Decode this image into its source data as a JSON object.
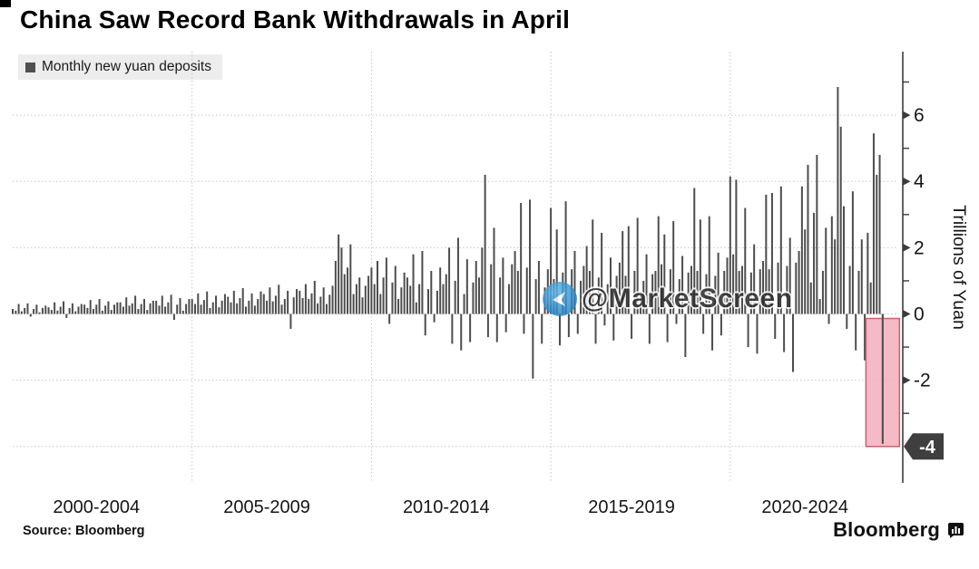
{
  "header": {
    "title": "China Saw Record Bank Withdrawals in April",
    "legend_label": "Monthly new yuan deposits"
  },
  "watermark": {
    "text": "@MarketScreen"
  },
  "footer": {
    "source": "Source: Bloomberg",
    "brand": "Bloomberg"
  },
  "chart_data": {
    "type": "bar",
    "title": "China Saw Record Bank Withdrawals in April",
    "series_name": "Monthly new yuan deposits",
    "ylabel": "Trillions of Yuan",
    "x_start": "2000-01",
    "x_end": "2024-04",
    "x_tick_labels": [
      "2000-2004",
      "2005-2009",
      "2010-2014",
      "2015-2019",
      "2020-2024"
    ],
    "y_axis": {
      "labeled_ticks": [
        6,
        4,
        2,
        0,
        -2
      ],
      "minor_ticks": [
        7,
        6,
        5,
        4,
        3,
        2,
        1,
        0,
        -1,
        -2,
        -3
      ],
      "ylim": [
        -5,
        7.9
      ],
      "gridlines": [
        6,
        4,
        2,
        0,
        -2,
        -4
      ],
      "badge": {
        "value": -4,
        "label": "-4"
      }
    },
    "values": [
      0.15,
      0.1,
      0.3,
      0.08,
      0.18,
      0.32,
      -0.08,
      0.15,
      0.28,
      0.05,
      0.18,
      0.25,
      0.2,
      0.12,
      0.35,
      0.1,
      0.22,
      0.38,
      -0.12,
      0.18,
      0.32,
      0.08,
      0.22,
      0.3,
      0.28,
      0.18,
      0.42,
      0.15,
      0.28,
      0.45,
      0.1,
      0.25,
      0.38,
      0.12,
      0.28,
      0.35,
      0.35,
      0.22,
      0.5,
      0.25,
      0.32,
      0.55,
      0.15,
      0.3,
      0.45,
      0.12,
      0.32,
      0.4,
      0.4,
      0.25,
      0.55,
      0.22,
      0.35,
      0.58,
      -0.18,
      0.28,
      0.48,
      0.1,
      0.3,
      0.45,
      0.45,
      0.3,
      0.62,
      0.28,
      0.42,
      0.68,
      0.18,
      0.35,
      0.55,
      0.2,
      0.4,
      0.6,
      0.52,
      0.35,
      0.7,
      0.32,
      0.48,
      0.78,
      0.22,
      0.4,
      0.62,
      0.25,
      0.45,
      0.68,
      0.6,
      0.4,
      0.8,
      0.38,
      0.55,
      0.88,
      0.28,
      0.45,
      0.7,
      -0.45,
      0.5,
      0.75,
      0.7,
      0.48,
      0.9,
      0.45,
      0.62,
      1.0,
      0.32,
      0.52,
      0.8,
      0.3,
      0.58,
      0.85,
      1.6,
      2.4,
      2.0,
      1.2,
      1.4,
      2.1,
      0.6,
      0.9,
      1.1,
      0.5,
      0.85,
      1.15,
      1.4,
      0.9,
      1.6,
      0.6,
      1.1,
      1.7,
      -0.3,
      0.95,
      1.45,
      0.45,
      0.8,
      1.25,
      1.1,
      0.85,
      1.8,
      0.35,
      0.9,
      1.9,
      -0.65,
      0.75,
      1.3,
      -0.25,
      0.7,
      1.4,
      0.9,
      1.2,
      2.0,
      -0.9,
      1.0,
      2.3,
      -1.1,
      0.6,
      1.65,
      -0.85,
      0.95,
      1.6,
      1.1,
      2.0,
      4.2,
      -0.7,
      1.5,
      2.6,
      -0.85,
      1.1,
      1.7,
      -0.55,
      0.9,
      1.5,
      1.9,
      1.3,
      3.35,
      -0.6,
      1.4,
      3.45,
      -1.95,
      1.05,
      1.6,
      -0.9,
      0.8,
      1.35,
      3.2,
      1.05,
      2.55,
      -0.95,
      1.25,
      3.4,
      -0.7,
      1.35,
      1.9,
      -0.6,
      1.0,
      1.45,
      2.05,
      1.3,
      2.85,
      -0.9,
      1.1,
      2.45,
      -0.35,
      0.9,
      1.7,
      -0.8,
      1.15,
      1.55,
      2.5,
      1.15,
      2.65,
      -0.75,
      1.3,
      2.9,
      0.55,
      1.0,
      1.8,
      -0.9,
      1.2,
      1.3,
      2.95,
      1.5,
      2.4,
      -0.85,
      1.35,
      2.8,
      -0.3,
      1.05,
      1.75,
      -1.3,
      1.25,
      1.45,
      3.8,
      1.3,
      2.85,
      -0.6,
      1.2,
      2.95,
      -1.1,
      1.15,
      1.85,
      -0.65,
      1.3,
      1.7,
      4.15,
      1.8,
      4.05,
      1.3,
      1.45,
      3.2,
      -1.0,
      1.25,
      2.1,
      -1.2,
      1.35,
      1.6,
      3.6,
      1.35,
      3.65,
      -0.75,
      1.55,
      3.85,
      -1.15,
      1.45,
      2.3,
      -1.75,
      1.55,
      1.9,
      3.85,
      2.55,
      4.5,
      0.95,
      3.05,
      4.8,
      0.45,
      1.3,
      2.6,
      -0.3,
      2.95,
      2.25,
      6.85,
      5.65,
      3.25,
      -0.45,
      1.45,
      3.7,
      -1.1,
      1.3,
      2.25,
      -1.4,
      2.45,
      0.95,
      5.45,
      4.2,
      4.8,
      -3.92
    ],
    "highlight": {
      "month": "2024-04",
      "bar_value": -3.92,
      "box_top_value": 0,
      "box_bottom_value": -4,
      "label": "-4"
    },
    "colors": {
      "bar": "#4d4d4d",
      "highlight_fill": "#f2abba",
      "highlight_border": "#c96073",
      "badge_bg": "#3f3f3f",
      "badge_text": "#ffffff",
      "gridline": "#c8c8c8",
      "axis": "#3c3c3c",
      "tick_label": "#151515"
    },
    "legend_position": "top-left",
    "grid": true
  }
}
